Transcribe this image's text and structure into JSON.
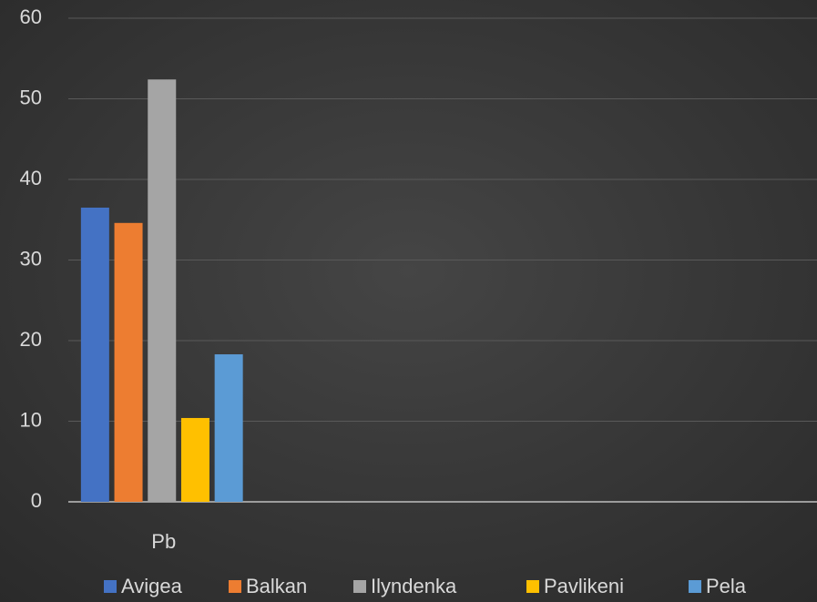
{
  "chart_data": {
    "type": "bar",
    "categories": [
      "Pb",
      null,
      null,
      null
    ],
    "series": [
      {
        "name": "Avigea",
        "color": "#4472c4",
        "values": [
          36.5,
          null,
          null,
          null
        ]
      },
      {
        "name": "Balkan",
        "color": "#ed7d31",
        "values": [
          34.6,
          null,
          null,
          null
        ]
      },
      {
        "name": "Ilyndenka",
        "color": "#a5a5a5",
        "values": [
          52.4,
          null,
          null,
          null
        ]
      },
      {
        "name": "Pavlikeni",
        "color": "#ffc000",
        "values": [
          10.4,
          null,
          null,
          null
        ]
      },
      {
        "name": "Pela",
        "color": "#5b9bd5",
        "values": [
          18.3,
          null,
          null,
          null
        ]
      }
    ],
    "ylim": [
      0,
      60
    ],
    "yticks": [
      0,
      10,
      20,
      30,
      40,
      50,
      60
    ],
    "grid": true,
    "legend": "bottom"
  }
}
